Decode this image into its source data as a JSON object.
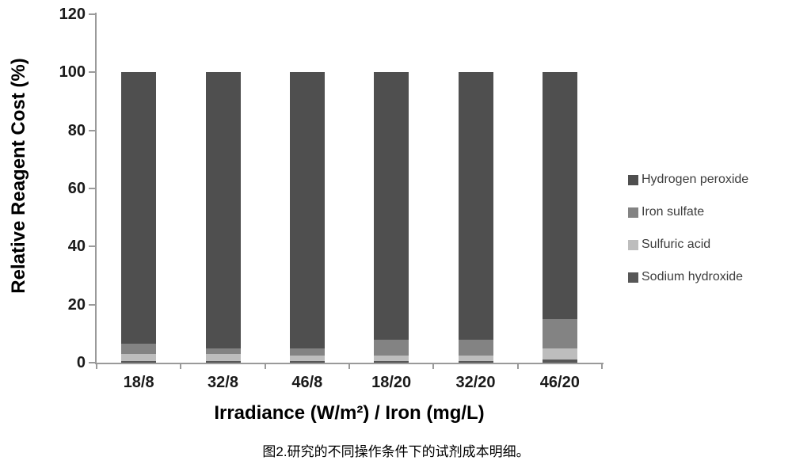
{
  "figure": {
    "caption": "图2.研究的不同操作条件下的试剂成本明细。"
  },
  "chart_data": {
    "type": "bar",
    "stacked": true,
    "title": "",
    "ylabel": "Relative Reagent Cost (%)",
    "xlabel": "Irradiance (W/m²) / Iron (mg/L)",
    "categories": [
      "18/8",
      "32/8",
      "46/8",
      "18/20",
      "32/20",
      "46/20"
    ],
    "series": [
      {
        "name": "Sodium hydroxide",
        "color": "#575757",
        "values": [
          0.5,
          0.5,
          0.5,
          0.5,
          0.5,
          1
        ]
      },
      {
        "name": "Sulfuric acid",
        "color": "#bdbdbd",
        "values": [
          2.5,
          2.5,
          2.0,
          2.0,
          2.0,
          4
        ]
      },
      {
        "name": "Iron sulfate",
        "color": "#838383",
        "values": [
          3.5,
          2.0,
          2.5,
          5.5,
          5.5,
          10
        ]
      },
      {
        "name": "Hydrogen peroxide",
        "color": "#4f4f4f",
        "values": [
          93.5,
          95.0,
          95.0,
          92.0,
          92.0,
          85
        ]
      }
    ],
    "stack_order": "bottom-to-top",
    "legend_position": "right",
    "legend_order": [
      "Hydrogen peroxide",
      "Iron sulfate",
      "Sulfuric acid",
      "Sodium hydroxide"
    ],
    "ylim": [
      0,
      120
    ],
    "yticks": [
      0,
      20,
      40,
      60,
      80,
      100,
      120
    ],
    "grid": false
  }
}
